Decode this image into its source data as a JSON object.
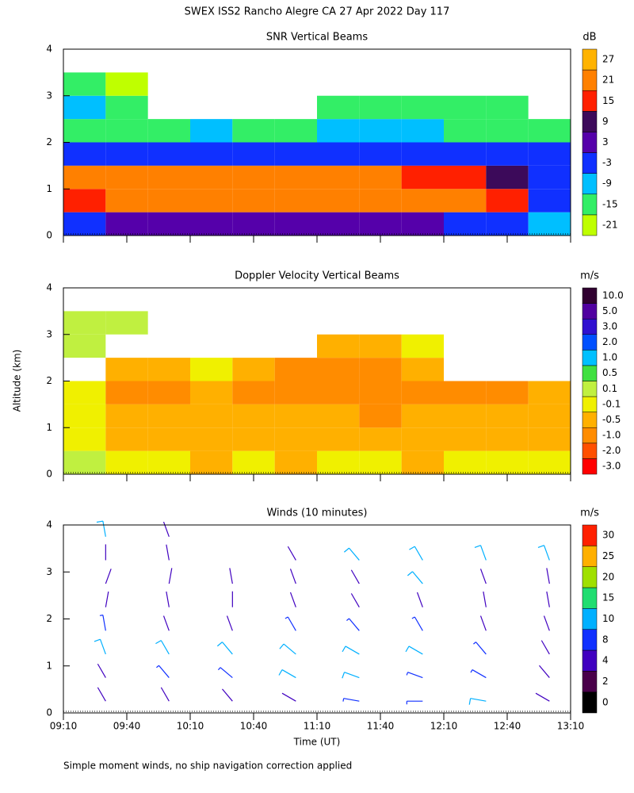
{
  "title": "SWEX ISS2 Rancho Alegre CA  27 Apr 2022 Day 117",
  "footnote": "Simple moment winds, no ship navigation correction applied",
  "chart_data": [
    {
      "type": "heatmap",
      "title": "SNR Vertical Beams",
      "ylabel": "Altitude (km)",
      "x": [
        560,
        580,
        600,
        620,
        640,
        660,
        680,
        700,
        720,
        740,
        760,
        780
      ],
      "y": [
        0.25,
        0.75,
        1.25,
        1.75,
        2.25,
        2.75,
        3.25,
        3.75
      ],
      "z": [
        [
          -3,
          3,
          3,
          3,
          3,
          3,
          3,
          3,
          3,
          -3,
          -3,
          -9
        ],
        [
          15,
          21,
          21,
          21,
          21,
          21,
          21,
          21,
          21,
          21,
          15,
          -3
        ],
        [
          21,
          21,
          21,
          21,
          21,
          21,
          21,
          21,
          15,
          15,
          9,
          -3
        ],
        [
          -3,
          -3,
          -3,
          -3,
          -3,
          -3,
          -3,
          -3,
          -3,
          -3,
          -3,
          -3
        ],
        [
          -15,
          -15,
          -15,
          -9,
          -15,
          -15,
          -9,
          -9,
          -9,
          -15,
          -15,
          -15
        ],
        [
          -9,
          -15,
          null,
          null,
          null,
          null,
          -15,
          -15,
          -15,
          -15,
          -15,
          null
        ],
        [
          -15,
          -21,
          null,
          null,
          null,
          null,
          null,
          null,
          null,
          null,
          null,
          null
        ],
        [
          null,
          null,
          null,
          null,
          null,
          null,
          null,
          null,
          null,
          null,
          null,
          null
        ]
      ],
      "ylim": [
        0,
        4
      ],
      "yticks": [
        0,
        1,
        2,
        3,
        4
      ],
      "colorbar": {
        "title": "dB",
        "ticks": [
          -21,
          -15,
          -9,
          -3,
          3,
          9,
          15,
          21,
          27
        ],
        "colors": [
          "#bfff00",
          "#33ee66",
          "#00bfff",
          "#1030ff",
          "#5500aa",
          "#3c0a5a",
          "#ff2000",
          "#ff8000",
          "#ffb300"
        ]
      }
    },
    {
      "type": "heatmap",
      "title": "Doppler Velocity Vertical Beams",
      "x": [
        560,
        580,
        600,
        620,
        640,
        660,
        680,
        700,
        720,
        740,
        760,
        780
      ],
      "y": [
        0.25,
        0.75,
        1.25,
        1.75,
        2.25,
        2.75,
        3.25,
        3.75
      ],
      "z": [
        [
          0.1,
          -0.1,
          -0.1,
          -0.5,
          -0.1,
          -0.5,
          -0.1,
          -0.1,
          -0.5,
          -0.1,
          -0.1,
          -0.1
        ],
        [
          -0.1,
          -0.5,
          -0.5,
          -0.5,
          -0.5,
          -0.5,
          -0.5,
          -0.5,
          -0.5,
          -0.5,
          -0.5,
          -0.5
        ],
        [
          -0.1,
          -0.5,
          -0.5,
          -0.5,
          -0.5,
          -0.5,
          -0.5,
          -1,
          -0.5,
          -0.5,
          -0.5,
          -0.5
        ],
        [
          -0.1,
          -1,
          -1,
          -0.5,
          -1,
          -1,
          -1,
          -1,
          -1,
          -1,
          -1,
          -0.5
        ],
        [
          null,
          -0.5,
          -0.5,
          -0.1,
          -0.5,
          -1,
          -1,
          -1,
          -0.5,
          null,
          null,
          null
        ],
        [
          0.1,
          null,
          null,
          null,
          null,
          null,
          -0.5,
          -0.5,
          -0.1,
          null,
          null,
          null
        ],
        [
          0.1,
          0.1,
          null,
          null,
          null,
          null,
          null,
          null,
          null,
          null,
          null,
          null
        ],
        [
          null,
          null,
          null,
          null,
          null,
          null,
          null,
          null,
          null,
          null,
          null,
          null
        ]
      ],
      "ylim": [
        0,
        4
      ],
      "yticks": [
        0,
        1,
        2,
        3,
        4
      ],
      "colorbar": {
        "title": "m/s",
        "ticks": [
          {
            "value": -3,
            "label": "-3.0"
          },
          {
            "value": -2,
            "label": "-2.0"
          },
          {
            "value": -1,
            "label": "-1.0"
          },
          {
            "value": -0.5,
            "label": "-0.5"
          },
          {
            "value": -0.1,
            "label": "-0.1"
          },
          {
            "value": 0.1,
            "label": "0.1"
          },
          {
            "value": 0.5,
            "label": "0.5"
          },
          {
            "value": 1,
            "label": "1.0"
          },
          {
            "value": 2,
            "label": "2.0"
          },
          {
            "value": 3,
            "label": "3.0"
          },
          {
            "value": 5,
            "label": "5.0"
          },
          {
            "value": 10,
            "label": "10.0"
          }
        ],
        "colors": [
          "#ff0000",
          "#ff5000",
          "#ff8c00",
          "#ffb000",
          "#f0f000",
          "#c0f040",
          "#40e040",
          "#00c0ff",
          "#0050ff",
          "#3010d0",
          "#5000a0",
          "#300030"
        ]
      }
    },
    {
      "type": "barbs",
      "title": "Winds (10 minutes)",
      "xlabel": "Time (UT)",
      "x": [
        570,
        600,
        630,
        660,
        690,
        720,
        750,
        780
      ],
      "y": [
        0.25,
        0.75,
        1.25,
        1.75,
        2.25,
        2.75,
        3.25,
        3.75
      ],
      "speed": [
        [
          4,
          4,
          4,
          4,
          8,
          8,
          10,
          4
        ],
        [
          4,
          8,
          8,
          10,
          10,
          8,
          8,
          4
        ],
        [
          10,
          10,
          10,
          10,
          10,
          10,
          8,
          4
        ],
        [
          8,
          4,
          4,
          8,
          8,
          8,
          4,
          4
        ],
        [
          4,
          4,
          4,
          4,
          4,
          4,
          4,
          4
        ],
        [
          4,
          4,
          4,
          4,
          4,
          10,
          4,
          4
        ],
        [
          4,
          4,
          null,
          4,
          10,
          10,
          10,
          10
        ],
        [
          10,
          4,
          null,
          null,
          null,
          null,
          null,
          null
        ]
      ],
      "direction": [
        [
          330,
          330,
          320,
          300,
          280,
          270,
          280,
          300
        ],
        [
          330,
          320,
          310,
          300,
          290,
          290,
          300,
          320
        ],
        [
          340,
          330,
          320,
          310,
          300,
          300,
          320,
          330
        ],
        [
          350,
          340,
          340,
          330,
          320,
          330,
          340,
          340
        ],
        [
          10,
          350,
          0,
          340,
          330,
          340,
          350,
          350
        ],
        [
          20,
          10,
          350,
          340,
          330,
          320,
          340,
          350
        ],
        [
          0,
          350,
          null,
          330,
          320,
          330,
          340,
          340
        ],
        [
          350,
          340,
          null,
          null,
          null,
          null,
          null,
          null
        ]
      ],
      "xlim": [
        550,
        790
      ],
      "xticks": [
        {
          "value": 550,
          "label": "09:10"
        },
        {
          "value": 580,
          "label": "09:40"
        },
        {
          "value": 610,
          "label": "10:10"
        },
        {
          "value": 640,
          "label": "10:40"
        },
        {
          "value": 670,
          "label": "11:10"
        },
        {
          "value": 700,
          "label": "11:40"
        },
        {
          "value": 730,
          "label": "12:10"
        },
        {
          "value": 760,
          "label": "12:40"
        },
        {
          "value": 790,
          "label": "13:10"
        }
      ],
      "ylim": [
        0,
        4
      ],
      "yticks": [
        0,
        1,
        2,
        3,
        4
      ],
      "colorbar": {
        "title": "m/s",
        "ticks": [
          0,
          2,
          4,
          8,
          10,
          15,
          20,
          25,
          30
        ],
        "colors": [
          "#000000",
          "#4a004a",
          "#4000c0",
          "#1030ff",
          "#00b0ff",
          "#20dd70",
          "#a0e000",
          "#ffb000",
          "#ff2000"
        ]
      }
    }
  ]
}
